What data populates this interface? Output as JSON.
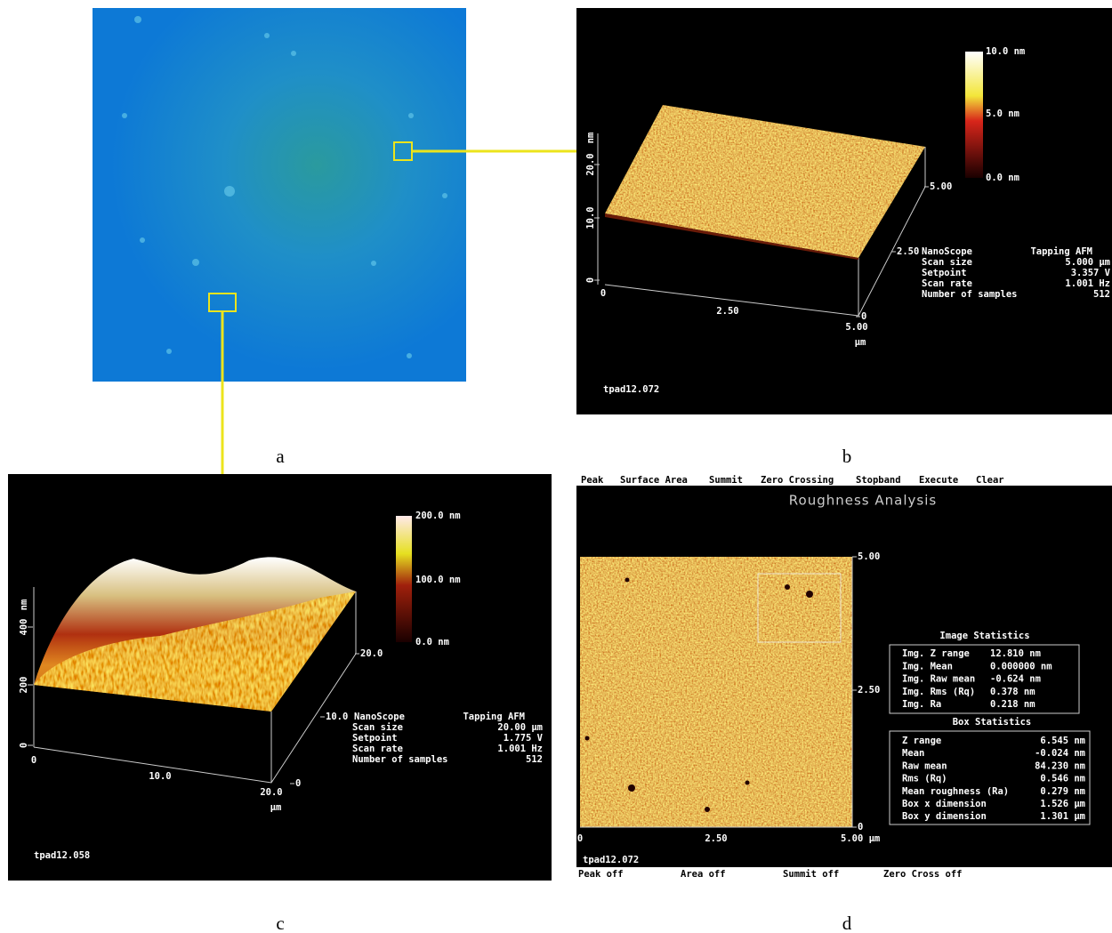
{
  "panel_a": {
    "label": "a"
  },
  "panel_b": {
    "label": "b",
    "z_axis": {
      "unit": "nm",
      "ticks": [
        "0",
        "10.0",
        "20.0"
      ]
    },
    "x_axis": {
      "ticks": [
        "0",
        "2.50",
        "5.00"
      ],
      "unit": "µm"
    },
    "y_axis": {
      "ticks": [
        "0",
        "2.50",
        "5.00"
      ]
    },
    "colorbar": [
      "10.0 nm",
      "5.0 nm",
      "0.0 nm"
    ],
    "info": {
      "instrument": "NanoScope",
      "mode": "Tapping AFM",
      "rows": [
        [
          "Scan size",
          "5.000 µm"
        ],
        [
          "Setpoint",
          "3.357 V"
        ],
        [
          "Scan rate",
          "1.001 Hz"
        ],
        [
          "Number of samples",
          "512"
        ]
      ]
    },
    "filename": "tpad12.072"
  },
  "panel_c": {
    "label": "c",
    "z_axis": {
      "unit": "nm",
      "ticks": [
        "0",
        "200",
        "400"
      ]
    },
    "x_axis": {
      "ticks": [
        "0",
        "10.0",
        "20.0"
      ],
      "unit": "µm"
    },
    "y_axis": {
      "ticks": [
        "0",
        "10.0",
        "20.0"
      ]
    },
    "colorbar": [
      "200.0 nm",
      "100.0 nm",
      "0.0 nm"
    ],
    "info": {
      "instrument": "NanoScope",
      "mode": "Tapping AFM",
      "rows": [
        [
          "Scan size",
          "20.00 µm"
        ],
        [
          "Setpoint",
          "1.775 V"
        ],
        [
          "Scan rate",
          "1.001 Hz"
        ],
        [
          "Number of samples",
          "512"
        ]
      ]
    },
    "filename": "tpad12.058"
  },
  "panel_d": {
    "label": "d",
    "menu": [
      "Peak",
      "Surface Area",
      "Summit",
      "Zero Crossing",
      "Stopband",
      "Execute",
      "Clear"
    ],
    "title": "Roughness Analysis",
    "y_axis": {
      "ticks": [
        "5.00",
        "2.50",
        "0"
      ]
    },
    "x_axis": {
      "ticks": [
        "0",
        "2.50",
        "5.00 µm"
      ]
    },
    "image_statistics": {
      "title": "Image Statistics",
      "rows": [
        [
          "Img. Z range",
          "12.810 nm"
        ],
        [
          "Img. Mean",
          "0.000000 nm"
        ],
        [
          "Img. Raw mean",
          "-0.624 nm"
        ],
        [
          "Img. Rms (Rq)",
          "0.378 nm"
        ],
        [
          "Img. Ra",
          "0.218 nm"
        ]
      ]
    },
    "box_statistics": {
      "title": "Box Statistics",
      "rows": [
        [
          "Z range",
          "6.545 nm"
        ],
        [
          "Mean",
          "-0.024 nm"
        ],
        [
          "Raw mean",
          "84.230 nm"
        ],
        [
          "Rms (Rq)",
          "0.546 nm"
        ],
        [
          "Mean roughness (Ra)",
          "0.279 nm"
        ],
        [
          "Box x dimension",
          "1.526 µm"
        ],
        [
          "Box y dimension",
          "1.301 µm"
        ]
      ]
    },
    "filename": "tpad12.072",
    "status": [
      "Peak off",
      "Area off",
      "Summit off",
      "Zero Cross off"
    ]
  }
}
